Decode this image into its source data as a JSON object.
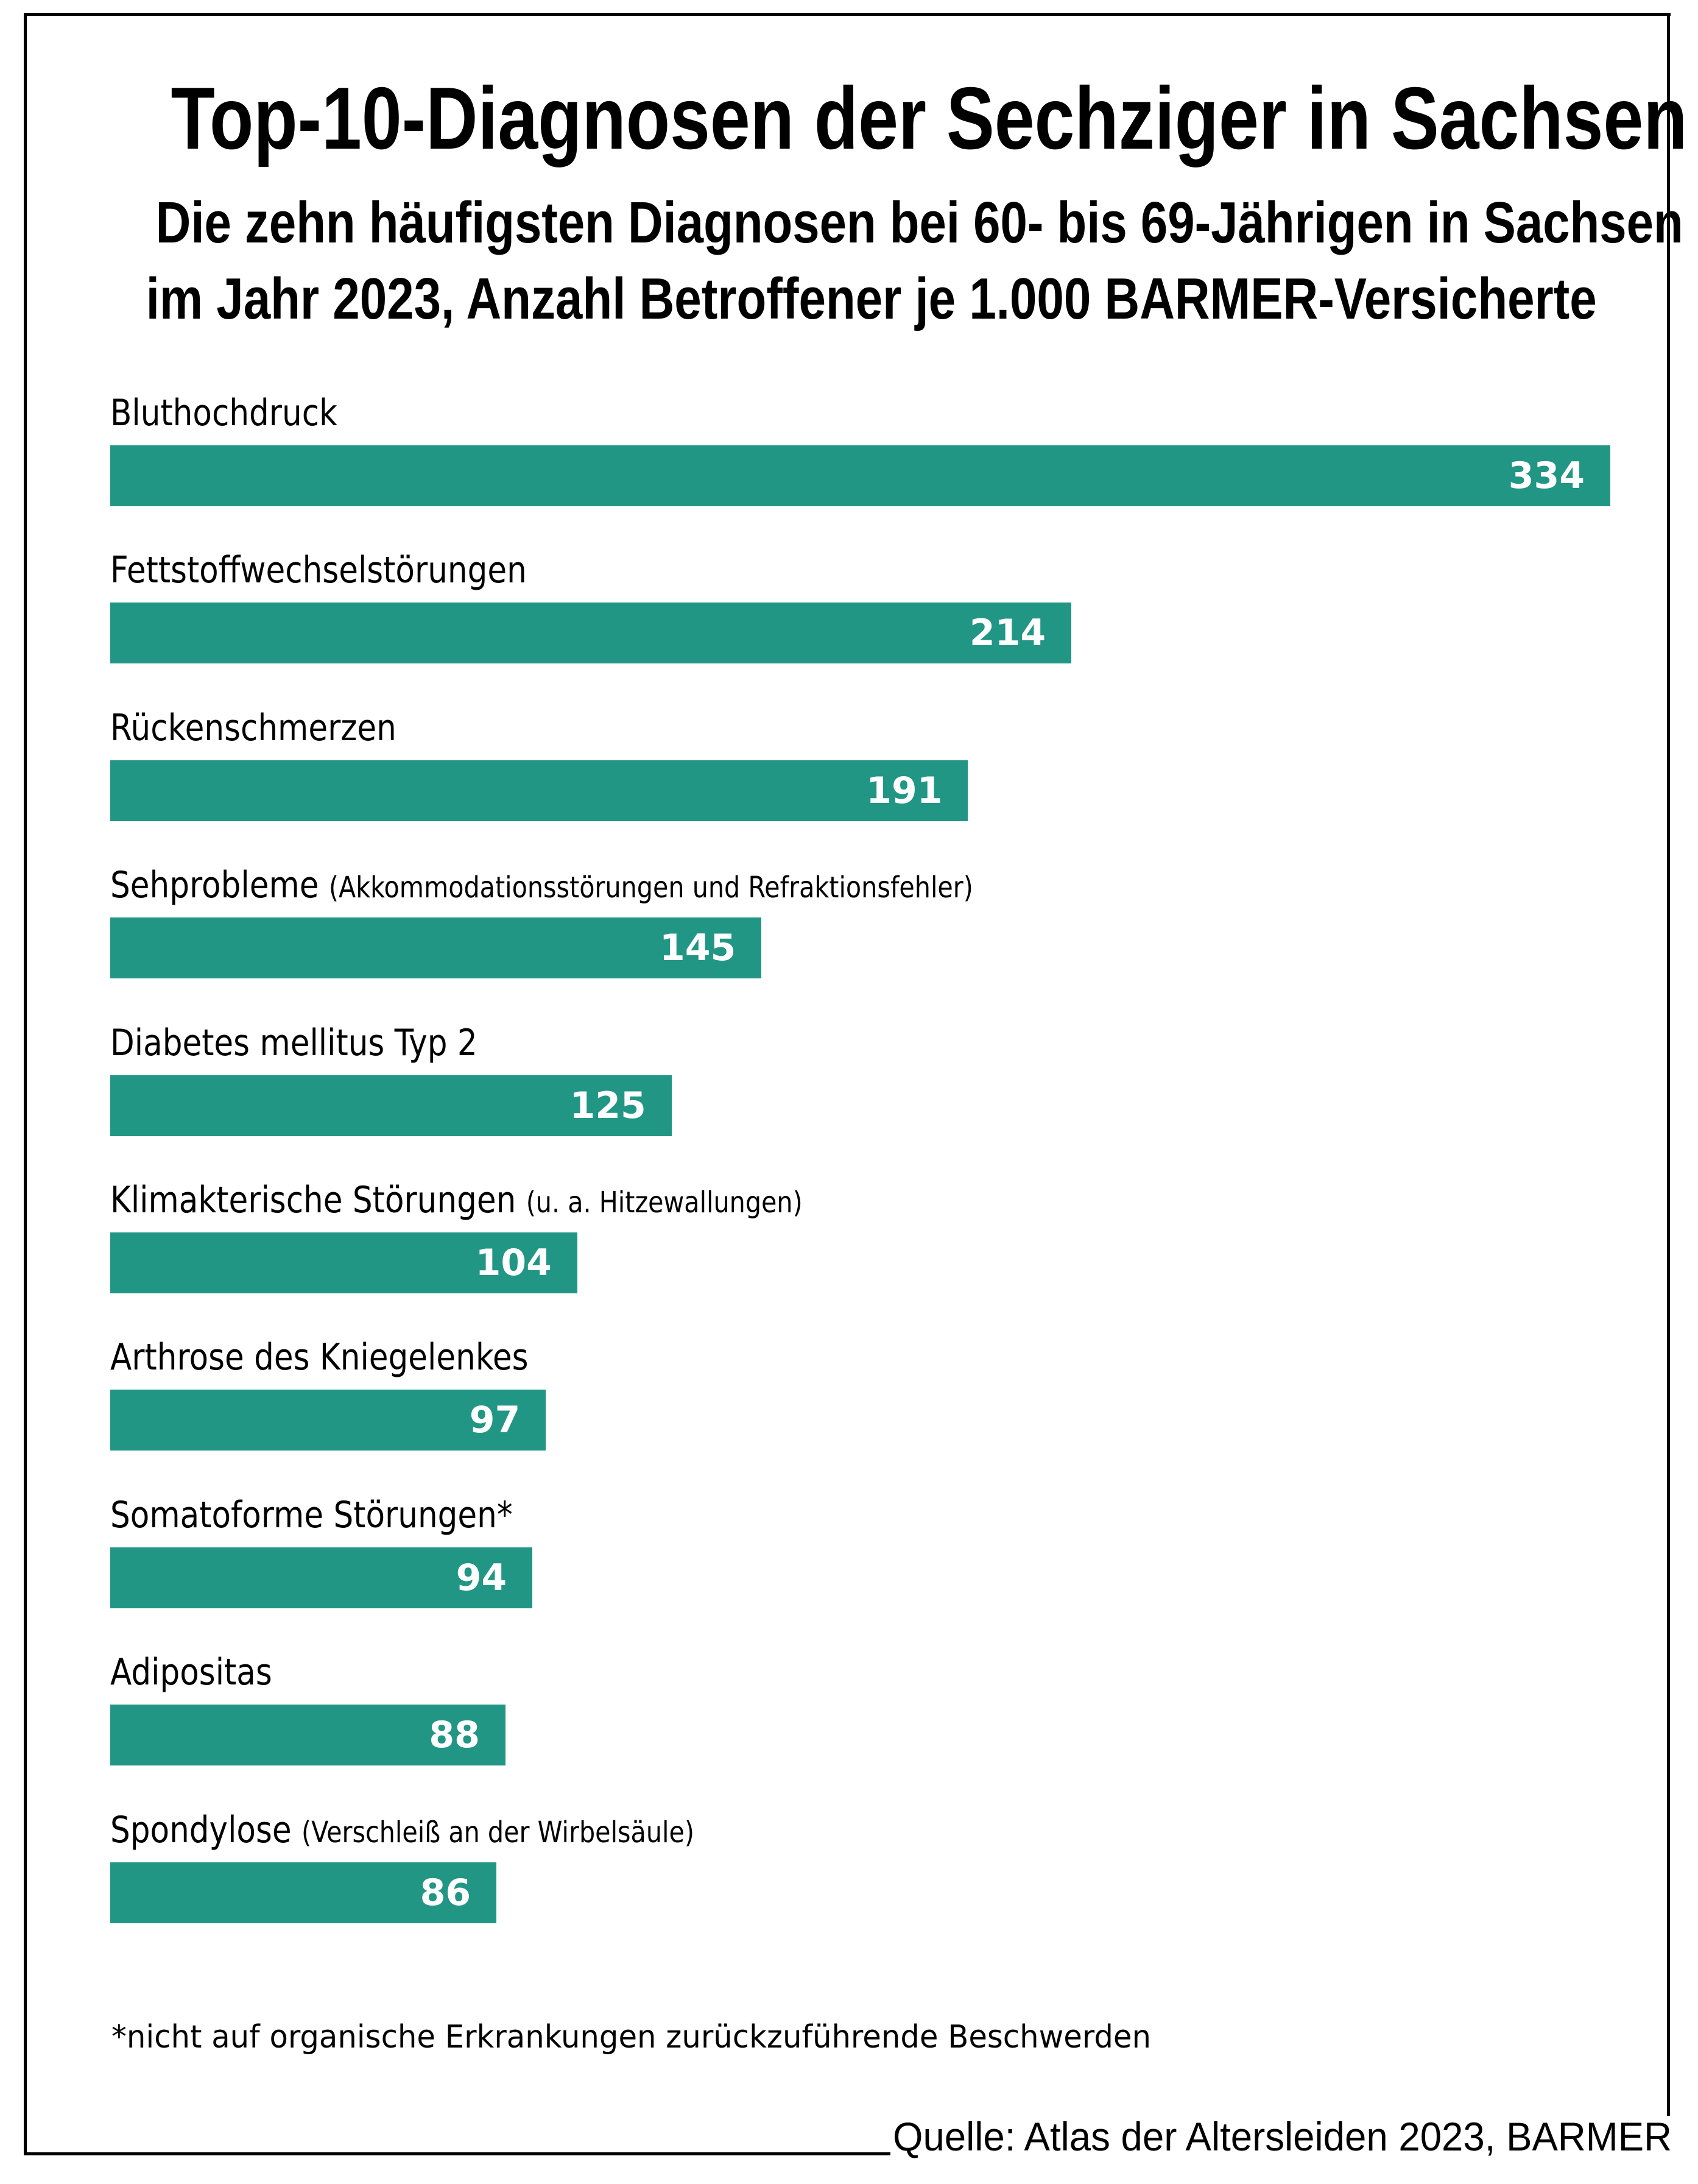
{
  "header": {
    "title": "Top-10-Diagnosen der Sechziger in Sachsen",
    "subtitle_line1": "Die zehn häufigsten Diagnosen bei 60- bis 69-Jährigen in Sachsen",
    "subtitle_line2": "im Jahr 2023, Anzahl Betroffener je 1.000 BARMER-Versicherte"
  },
  "footnote": "*nicht auf organische Erkrankungen zurückzuführende Beschwerden",
  "source": "Quelle: Atlas der Altersleiden 2023, BARMER",
  "colors": {
    "bar": "#219684",
    "bar_text": "#ffffff",
    "text": "#000000"
  },
  "chart_data": {
    "type": "bar",
    "orientation": "horizontal",
    "title": "Top-10-Diagnosen der Sechziger in Sachsen",
    "subtitle": "Die zehn häufigsten Diagnosen bei 60- bis 69-Jährigen in Sachsen im Jahr 2023, Anzahl Betroffener je 1.000 BARMER-Versicherte",
    "xlabel": "",
    "ylabel": "",
    "xlim": [
      0,
      334
    ],
    "grid": false,
    "legend": "none",
    "categories": [
      {
        "name": "Bluthochdruck",
        "note": ""
      },
      {
        "name": "Fettstoffwechselstörungen",
        "note": ""
      },
      {
        "name": "Rückenschmerzen",
        "note": ""
      },
      {
        "name": "Sehprobleme",
        "note": "(Akkommodationsstörungen und Refraktionsfehler)"
      },
      {
        "name": "Diabetes mellitus Typ 2",
        "note": ""
      },
      {
        "name": "Klimakterische Störungen",
        "note": "(u. a. Hitzewallungen)"
      },
      {
        "name": "Arthrose des Kniegelenkes",
        "note": ""
      },
      {
        "name": "Somatoforme Störungen*",
        "note": ""
      },
      {
        "name": "Adipositas",
        "note": ""
      },
      {
        "name": "Spondylose",
        "note": "(Verschleiß an der Wirbelsäule)"
      }
    ],
    "values": [
      334,
      214,
      191,
      145,
      125,
      104,
      97,
      94,
      88,
      86
    ]
  }
}
